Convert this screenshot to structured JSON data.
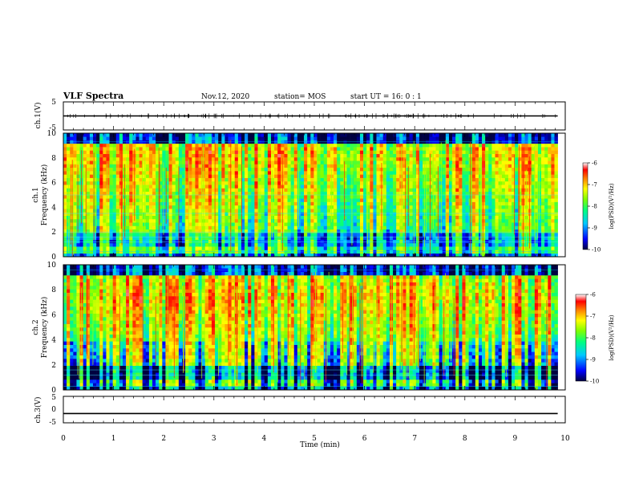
{
  "header": {
    "title": "VLF Spectra",
    "date": "Nov.12, 2020",
    "station": "station= MOS",
    "start": "start UT =   16: 0  : 1"
  },
  "chart_data": [
    {
      "type": "line",
      "name": "ch.1 waveform",
      "ylabel": "ch.1(V)",
      "ylim": [
        -5,
        5
      ],
      "y_ticks": [
        "5",
        "-5"
      ],
      "xlim": [
        0,
        10
      ],
      "x": [
        0,
        9.85
      ],
      "y": [
        0,
        0
      ]
    },
    {
      "type": "heatmap",
      "name": "ch.1 spectrogram",
      "ylabel": "ch.1 Frequency (kHz)",
      "ylabel_line1": "ch.1",
      "ylabel_line2": "Frequency (kHz)",
      "ylim": [
        0,
        10
      ],
      "y_ticks": [
        "0",
        "2",
        "4",
        "6",
        "8",
        "10"
      ],
      "xlim": [
        0,
        10
      ],
      "data_end_min": 9.85,
      "colorbar": {
        "label": "log(PSD)(V²/Hz)",
        "range": [
          -10,
          -6
        ],
        "ticks": [
          "-6",
          "-7",
          "-8",
          "-9",
          "-10"
        ]
      }
    },
    {
      "type": "heatmap",
      "name": "ch.2 spectrogram",
      "ylabel": "ch.2 Frequency (kHz)",
      "ylabel_line1": "ch.2",
      "ylabel_line2": "Frequency (kHz)",
      "ylim": [
        0,
        10
      ],
      "y_ticks": [
        "0",
        "2",
        "4",
        "6",
        "8",
        "10"
      ],
      "xlim": [
        0,
        10
      ],
      "data_end_min": 9.85,
      "colorbar": {
        "label": "log(PSD)(V²/Hz)",
        "range": [
          -10,
          -6
        ],
        "ticks": [
          "-6",
          "-7",
          "-8",
          "-9",
          "-10"
        ]
      }
    },
    {
      "type": "line",
      "name": "ch.3 waveform",
      "ylabel": "ch.3(V)",
      "ylim": [
        -5,
        5
      ],
      "y_ticks": [
        "5",
        "0",
        "-5"
      ],
      "xlim": [
        0,
        10
      ],
      "x": [
        0,
        9.85
      ],
      "y": [
        -1.5,
        -1.5
      ]
    }
  ],
  "x_axis": {
    "label": "Time (min)",
    "ticks": [
      "0",
      "1",
      "2",
      "3",
      "4",
      "5",
      "6",
      "7",
      "8",
      "9",
      "10"
    ]
  },
  "colors": {
    "colormap": [
      "#000040",
      "#0000ff",
      "#00c8ff",
      "#00ff80",
      "#80ff00",
      "#ffff00",
      "#ff8000",
      "#ff0000",
      "#ffffff"
    ]
  }
}
